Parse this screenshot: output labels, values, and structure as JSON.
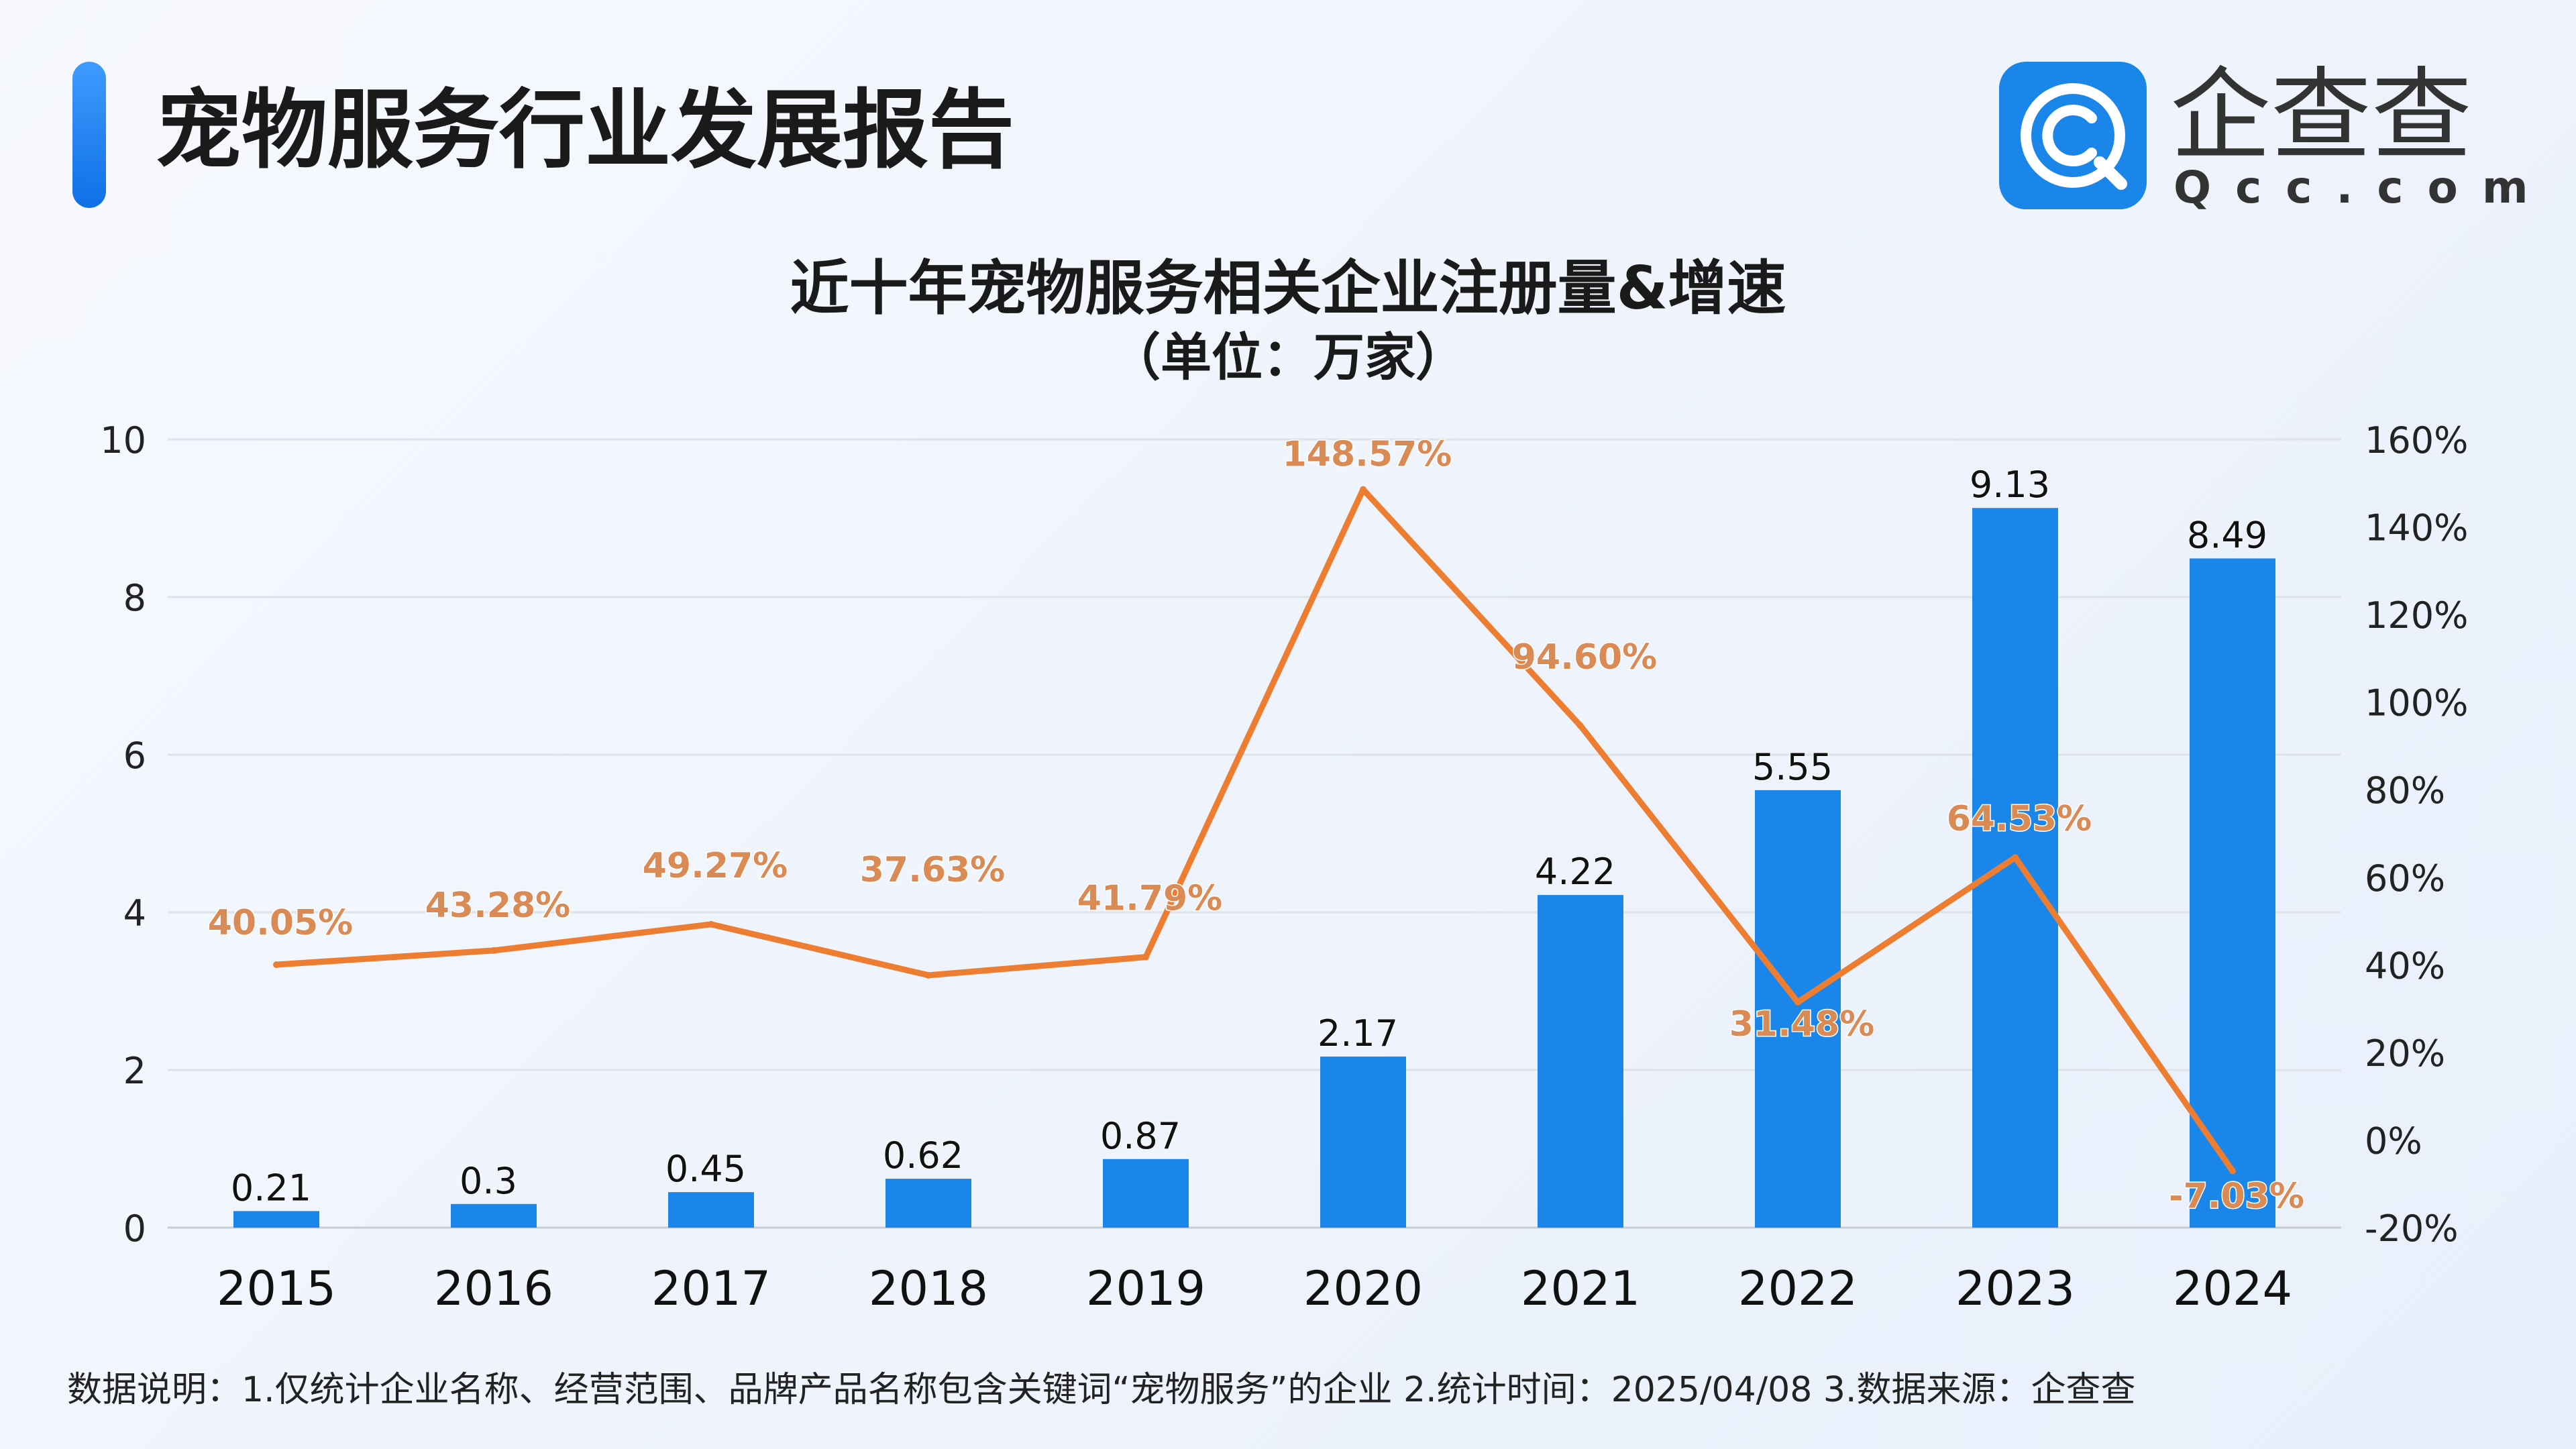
{
  "header": {
    "title": "宠物服务行业发展报告",
    "logo_word": "企查查",
    "logo_url": "Qcc.com"
  },
  "chart_data": {
    "type": "bar",
    "title": "近十年宠物服务相关企业注册量&增速",
    "subtitle": "（单位：万家）",
    "categories": [
      "2015",
      "2016",
      "2017",
      "2018",
      "2019",
      "2020",
      "2021",
      "2022",
      "2023",
      "2024"
    ],
    "series": [
      {
        "type": "bar",
        "axis": "left",
        "values": [
          0.21,
          0.3,
          0.45,
          0.62,
          0.87,
          2.17,
          4.22,
          5.55,
          9.13,
          8.49
        ],
        "labels": [
          "0.21",
          "0.3",
          "0.45",
          "0.62",
          "0.87",
          "2.17",
          "4.22",
          "5.55",
          "9.13",
          "8.49"
        ],
        "color": "#1a86ea"
      },
      {
        "type": "line",
        "axis": "right",
        "values": [
          40.05,
          43.28,
          49.27,
          37.63,
          41.79,
          148.57,
          94.6,
          31.48,
          64.53,
          -7.03
        ],
        "labels": [
          "40.05%",
          "43.28%",
          "49.27%",
          "37.63%",
          "41.79%",
          "148.57%",
          "94.60%",
          "31.48%",
          "64.53%",
          "-7.03%"
        ],
        "color": "#ed7d31"
      }
    ],
    "y_left": {
      "range": [
        0,
        10
      ],
      "ticks": [
        "0",
        "2",
        "4",
        "6",
        "8",
        "10"
      ]
    },
    "y_right": {
      "range": [
        -20,
        160
      ],
      "ticks": [
        "-20%",
        "0%",
        "20%",
        "40%",
        "60%",
        "80%",
        "100%",
        "120%",
        "140%",
        "160%"
      ]
    },
    "grid": true,
    "legend": "none"
  },
  "footnote": "数据说明：1.仅统计企业名称、经营范围、品牌产品名称包含关键词“宠物服务”的企业   2.统计时间：2025/04/08    3.数据来源：企查查"
}
